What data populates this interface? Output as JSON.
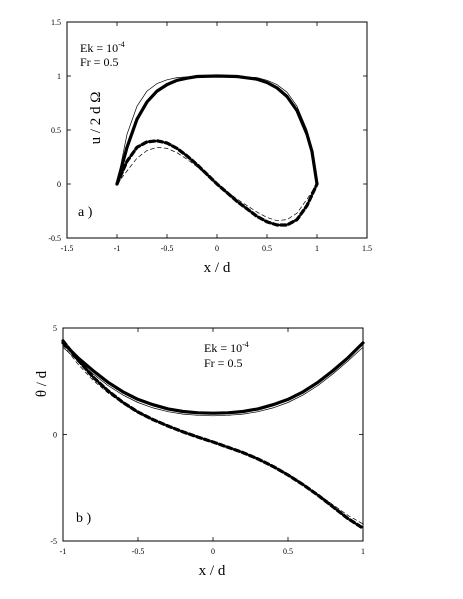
{
  "chart_data": [
    {
      "type": "line",
      "panel_label": "a )",
      "xlabel": "x / d",
      "ylabel": "u / 2 d Ω",
      "xlim": [
        -1.5,
        1.5
      ],
      "ylim": [
        -0.5,
        1.5
      ],
      "xticks": [
        "-1.5",
        "-1",
        "-0.5",
        "0",
        "0.5",
        "1",
        "1.5"
      ],
      "yticks": [
        "-0.5",
        "0",
        "0.5",
        "1",
        "1.5"
      ],
      "annotation": {
        "ek_base": "Ek = 10",
        "ek_exp": "-4",
        "fr": "Fr  = 0.5"
      },
      "series": [
        {
          "style": "thick-solid",
          "x": [
            -1.0,
            -0.9,
            -0.8,
            -0.7,
            -0.6,
            -0.5,
            -0.4,
            -0.3,
            -0.2,
            0.0,
            0.2,
            0.4,
            0.5,
            0.6,
            0.7,
            0.8,
            0.9,
            0.95,
            1.0
          ],
          "y": [
            0.0,
            0.34,
            0.6,
            0.76,
            0.86,
            0.92,
            0.96,
            0.98,
            0.995,
            1.0,
            0.995,
            0.97,
            0.94,
            0.89,
            0.81,
            0.68,
            0.46,
            0.3,
            0.0
          ]
        },
        {
          "style": "thin-solid",
          "x": [
            -1.0,
            -0.9,
            -0.8,
            -0.7,
            -0.6,
            -0.5,
            -0.4,
            -0.3,
            -0.2,
            0.0,
            0.2,
            0.4,
            0.5,
            0.6,
            0.7,
            0.8,
            0.9,
            0.95,
            1.0
          ],
          "y": [
            0.0,
            0.46,
            0.72,
            0.86,
            0.93,
            0.965,
            0.985,
            0.993,
            0.998,
            1.0,
            0.998,
            0.985,
            0.96,
            0.92,
            0.85,
            0.72,
            0.5,
            0.32,
            0.0
          ]
        },
        {
          "style": "thick-dashed",
          "x": [
            -1.0,
            -0.9,
            -0.8,
            -0.7,
            -0.6,
            -0.5,
            -0.4,
            -0.3,
            -0.2,
            -0.1,
            0.0,
            0.1,
            0.2,
            0.3,
            0.4,
            0.5,
            0.6,
            0.7,
            0.8,
            0.9,
            1.0
          ],
          "y": [
            0.0,
            0.21,
            0.34,
            0.39,
            0.4,
            0.38,
            0.33,
            0.26,
            0.18,
            0.09,
            0.0,
            -0.08,
            -0.16,
            -0.23,
            -0.3,
            -0.35,
            -0.38,
            -0.38,
            -0.33,
            -0.2,
            0.0
          ]
        },
        {
          "style": "thin-dashed",
          "x": [
            -1.0,
            -0.9,
            -0.8,
            -0.7,
            -0.6,
            -0.5,
            -0.4,
            -0.3,
            -0.2,
            -0.1,
            0.0,
            0.1,
            0.2,
            0.3,
            0.4,
            0.5,
            0.6,
            0.7,
            0.8,
            0.9,
            1.0
          ],
          "y": [
            0.0,
            0.12,
            0.24,
            0.31,
            0.34,
            0.33,
            0.29,
            0.23,
            0.16,
            0.08,
            0.0,
            -0.07,
            -0.14,
            -0.2,
            -0.26,
            -0.31,
            -0.34,
            -0.33,
            -0.27,
            -0.14,
            0.0
          ]
        }
      ]
    },
    {
      "type": "line",
      "panel_label": "b )",
      "xlabel": "x / d",
      "ylabel": "θ / d",
      "xlim": [
        -1,
        1
      ],
      "ylim": [
        -5,
        5
      ],
      "xticks": [
        "-1",
        "-0.5",
        "0",
        "0.5",
        "1"
      ],
      "yticks": [
        "-5",
        "0",
        "5"
      ],
      "annotation": {
        "ek_base": "Ek  = 10",
        "ek_exp": "-4",
        "fr": "Fr  = 0.5"
      },
      "series": [
        {
          "style": "thick-solid",
          "x": [
            -1.0,
            -0.9,
            -0.8,
            -0.7,
            -0.6,
            -0.5,
            -0.4,
            -0.3,
            -0.2,
            -0.1,
            0.0,
            0.1,
            0.2,
            0.3,
            0.4,
            0.5,
            0.6,
            0.7,
            0.8,
            0.9,
            1.0
          ],
          "y": [
            4.3,
            3.6,
            3.0,
            2.45,
            2.0,
            1.65,
            1.4,
            1.2,
            1.08,
            1.02,
            1.0,
            1.02,
            1.08,
            1.2,
            1.4,
            1.65,
            2.0,
            2.45,
            3.0,
            3.6,
            4.3
          ]
        },
        {
          "style": "thin-solid",
          "x": [
            -1.0,
            -0.9,
            -0.8,
            -0.7,
            -0.6,
            -0.5,
            -0.4,
            -0.3,
            -0.2,
            -0.1,
            0.0,
            0.1,
            0.2,
            0.3,
            0.4,
            0.5,
            0.6,
            0.7,
            0.8,
            0.9,
            1.0
          ],
          "y": [
            4.1,
            3.45,
            2.85,
            2.3,
            1.85,
            1.5,
            1.25,
            1.07,
            0.96,
            0.9,
            0.88,
            0.9,
            0.96,
            1.07,
            1.25,
            1.5,
            1.85,
            2.3,
            2.85,
            3.45,
            4.1
          ]
        },
        {
          "style": "thick-dashed",
          "x": [
            -1.0,
            -0.9,
            -0.8,
            -0.7,
            -0.6,
            -0.5,
            -0.4,
            -0.3,
            -0.2,
            -0.1,
            0.0,
            0.1,
            0.2,
            0.3,
            0.4,
            0.5,
            0.6,
            0.7,
            0.8,
            0.9,
            1.0
          ],
          "y": [
            4.4,
            3.5,
            2.7,
            2.05,
            1.5,
            1.05,
            0.7,
            0.4,
            0.12,
            -0.12,
            -0.35,
            -0.6,
            -0.85,
            -1.15,
            -1.5,
            -1.9,
            -2.35,
            -2.85,
            -3.4,
            -3.95,
            -4.4
          ]
        },
        {
          "style": "thin-dashed",
          "x": [
            -1.0,
            -0.9,
            -0.8,
            -0.7,
            -0.6,
            -0.5,
            -0.4,
            -0.3,
            -0.2,
            -0.1,
            0.0,
            0.1,
            0.2,
            0.3,
            0.4,
            0.5,
            0.6,
            0.7,
            0.8,
            0.9,
            1.0
          ],
          "y": [
            4.2,
            3.3,
            2.55,
            1.95,
            1.45,
            1.02,
            0.68,
            0.38,
            0.1,
            -0.13,
            -0.35,
            -0.58,
            -0.83,
            -1.1,
            -1.45,
            -1.85,
            -2.3,
            -2.8,
            -3.3,
            -3.8,
            -4.2
          ]
        }
      ]
    }
  ]
}
